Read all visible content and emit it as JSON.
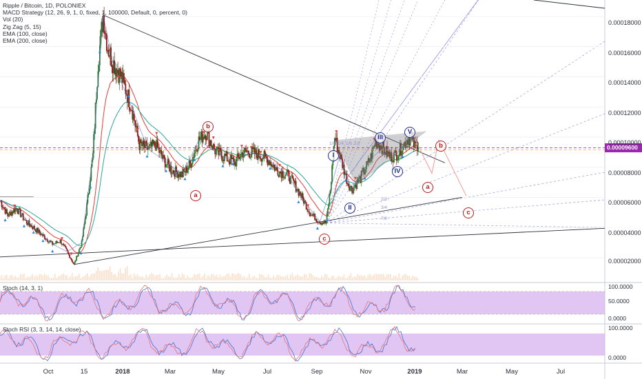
{
  "legend": {
    "symbol": "Ripple / Bitcoin, 1D, POLONIEX",
    "indicators": [
      "MACD Strategy (12, 26, 9, 1, 0, fixed, 1, 100000, Default, 0, percent, 0)",
      "Vol (20)",
      "Zig Zag (5, 15)",
      "EMA (100, close)",
      "EMA (200, close)"
    ]
  },
  "current_price_label": "0.00009600",
  "stoch_label": "Stoch (14, 3, 1)",
  "stochrsi_label": "Stoch RSI (3, 3, 14, 14, close)",
  "colors": {
    "price_line": "#9c27b0",
    "ema100": "#e53935",
    "ema200": "#26a69a",
    "zigzag": "#5c6bc0",
    "stoch_band": "#d7b3f0",
    "wave_blue": "#1e2a8c",
    "wave_red": "#b71c1c"
  },
  "fib_fan_labels": [
    "1/8",
    "1/4",
    "1/3",
    "1/2",
    "2/3",
    "3/4",
    "7/8"
  ],
  "wave_labels": {
    "blue": [
      "I",
      "II",
      "III",
      "IV",
      "V"
    ],
    "red_past": [
      "a",
      "b",
      "c"
    ],
    "red_projected": [
      "a",
      "b",
      "c"
    ]
  },
  "chart_data": {
    "type": "line",
    "title": "Ripple / Bitcoin, 1D, POLONIEX",
    "x_ticks": [
      "Oct",
      "15",
      "2018",
      "Mar",
      "May",
      "Jul",
      "Sep",
      "Nov",
      "2019",
      "Mar",
      "May",
      "Jul"
    ],
    "y_ticks": [
      "0.00002000",
      "0.00004000",
      "0.00006000",
      "0.00008000",
      "0.00010000",
      "0.00012000",
      "0.00014000",
      "0.00016000",
      "0.00018000"
    ],
    "y_values": [
      2e-05,
      4e-05,
      6e-05,
      8e-05,
      0.0001,
      0.00012,
      0.00014,
      0.00016,
      0.00018
    ],
    "ylim": [
      5.8e-06,
      0.000191
    ],
    "x_range": [
      "2017-09-01",
      "2019-08-05"
    ],
    "series": [
      {
        "values": [
          [
            "2017-09-01",
            5.8e-05
          ],
          [
            "2017-09-10",
            4.8e-05
          ],
          [
            "2017-09-20",
            5.3e-05
          ],
          [
            "2017-10-01",
            4.4e-05
          ],
          [
            "2017-10-10",
            4e-05
          ],
          [
            "2017-10-20",
            3.5e-05
          ],
          [
            "2017-11-01",
            2.9e-05
          ],
          [
            "2017-11-10",
            3.1e-05
          ],
          [
            "2017-11-18",
            2.4e-05
          ],
          [
            "2017-11-26",
            1.55e-05
          ],
          [
            "2017-12-05",
            3e-05
          ],
          [
            "2017-12-10",
            5e-05
          ],
          [
            "2017-12-18",
            8.8e-05
          ],
          [
            "2017-12-24",
            0.00015
          ],
          [
            "2017-12-30",
            0.000181
          ],
          [
            "2018-01-04",
            0.00016
          ],
          [
            "2018-01-10",
            0.00015
          ],
          [
            "2018-01-20",
            0.00014
          ],
          [
            "2018-02-01",
            0.00012
          ],
          [
            "2018-02-10",
            9.5e-05
          ],
          [
            "2018-02-20",
            9.2e-05
          ],
          [
            "2018-03-01",
            9.5e-05
          ],
          [
            "2018-03-10",
            8.5e-05
          ],
          [
            "2018-03-20",
            7.8e-05
          ],
          [
            "2018-04-01",
            7.5e-05
          ],
          [
            "2018-04-10",
            8.2e-05
          ],
          [
            "2018-04-20",
            9.8e-05
          ],
          [
            "2018-04-28",
            0.000103
          ],
          [
            "2018-05-10",
            9e-05
          ],
          [
            "2018-05-20",
            8.7e-05
          ],
          [
            "2018-06-01",
            8.3e-05
          ],
          [
            "2018-06-10",
            9e-05
          ],
          [
            "2018-06-20",
            9e-05
          ],
          [
            "2018-07-01",
            8.8e-05
          ],
          [
            "2018-07-10",
            8.5e-05
          ],
          [
            "2018-07-20",
            7.8e-05
          ],
          [
            "2018-08-01",
            7.5e-05
          ],
          [
            "2018-08-10",
            6.8e-05
          ],
          [
            "2018-08-20",
            5.8e-05
          ],
          [
            "2018-08-28",
            4.9e-05
          ],
          [
            "2018-09-08",
            4.4e-05
          ],
          [
            "2018-09-15",
            4.3e-05
          ],
          [
            "2018-09-20",
            6.5e-05
          ],
          [
            "2018-09-25",
            0.0001
          ],
          [
            "2018-10-01",
            8.8e-05
          ],
          [
            "2018-10-10",
            7e-05
          ],
          [
            "2018-10-15",
            6.5e-05
          ],
          [
            "2018-10-25",
            7.3e-05
          ],
          [
            "2018-11-05",
            8.5e-05
          ],
          [
            "2018-11-12",
            9.7e-05
          ],
          [
            "2018-11-20",
            9.3e-05
          ],
          [
            "2018-11-28",
            8.7e-05
          ],
          [
            "2018-12-05",
            8.8e-05
          ],
          [
            "2018-12-12",
            9.3e-05
          ],
          [
            "2018-12-20",
            0.0001
          ],
          [
            "2018-12-27",
            9.4e-05
          ],
          [
            "2018-12-31",
            9.6e-05
          ]
        ]
      }
    ]
  }
}
